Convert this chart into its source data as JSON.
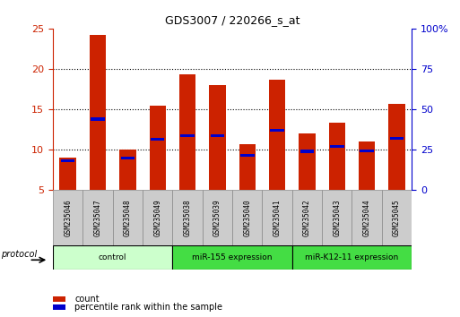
{
  "title": "GDS3007 / 220266_s_at",
  "samples": [
    "GSM235046",
    "GSM235047",
    "GSM235048",
    "GSM235049",
    "GSM235038",
    "GSM235039",
    "GSM235040",
    "GSM235041",
    "GSM235042",
    "GSM235043",
    "GSM235044",
    "GSM235045"
  ],
  "count_values": [
    9.0,
    24.2,
    10.0,
    15.5,
    19.3,
    18.0,
    10.7,
    18.7,
    12.0,
    13.4,
    11.0,
    15.7
  ],
  "percentile_values": [
    8.6,
    13.8,
    9.0,
    11.3,
    11.7,
    11.7,
    9.3,
    12.4,
    9.8,
    10.4,
    9.9,
    11.4
  ],
  "groups": [
    {
      "label": "control",
      "start": 0,
      "end": 4,
      "color": "#ccffcc"
    },
    {
      "label": "miR-155 expression",
      "start": 4,
      "end": 8,
      "color": "#44ee44"
    },
    {
      "label": "miR-K12-11 expression",
      "start": 8,
      "end": 12,
      "color": "#44ee44"
    }
  ],
  "ylim_left": [
    5,
    25
  ],
  "ylim_right": [
    0,
    100
  ],
  "yticks_left": [
    5,
    10,
    15,
    20,
    25
  ],
  "yticks_right": [
    0,
    25,
    50,
    75,
    100
  ],
  "bar_color": "#cc2200",
  "percentile_color": "#0000cc",
  "bar_width": 0.55,
  "background_color": "#ffffff",
  "plot_bg_color": "#ffffff",
  "left_axis_color": "#cc2200",
  "right_axis_color": "#0000cc",
  "protocol_label": "protocol",
  "legend_count": "count",
  "legend_percentile": "percentile rank within the sample",
  "group_bg_light": "#ccffcc",
  "group_bg_dark": "#44dd44",
  "sample_bg": "#cccccc"
}
